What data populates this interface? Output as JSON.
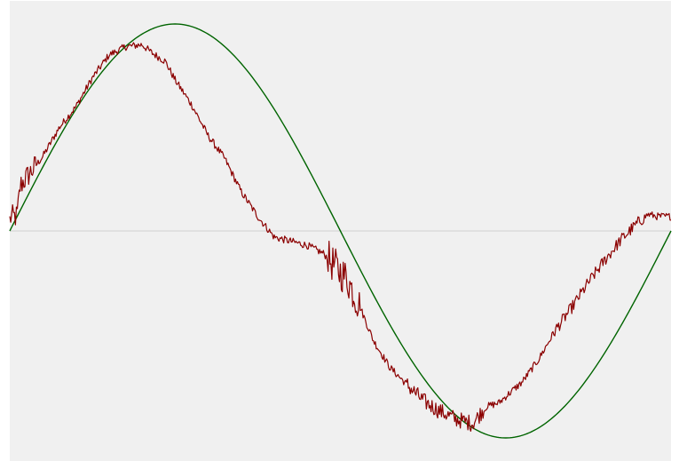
{
  "colors": {
    "background": "#ffffff",
    "plot_area": "#f0f0f0",
    "zero_line": "#d0d0d0",
    "reference_series": "#006400",
    "measured_series": "#8b0000"
  },
  "chart_data": {
    "type": "line",
    "title": "",
    "xlabel": "",
    "ylabel": "",
    "xlim": [
      0,
      1
    ],
    "ylim": [
      -1.12,
      1.12
    ],
    "grid": false,
    "legend": "none",
    "zero_line": true,
    "series": [
      {
        "kind": "smooth",
        "color": "#006400",
        "x": [
          0.0,
          0.05,
          0.1,
          0.15,
          0.2,
          0.25,
          0.3,
          0.35,
          0.4,
          0.45,
          0.5,
          0.55,
          0.6,
          0.65,
          0.7,
          0.75,
          0.8,
          0.85,
          0.9,
          0.95,
          1.0
        ],
        "y": [
          0.0,
          0.309,
          0.588,
          0.809,
          0.951,
          1.0,
          0.951,
          0.809,
          0.588,
          0.309,
          0.0,
          -0.309,
          -0.588,
          -0.809,
          -0.951,
          -1.0,
          -0.951,
          -0.809,
          -0.588,
          -0.309,
          0.0
        ]
      },
      {
        "kind": "noisy",
        "color": "#8b0000",
        "x": [
          0.0,
          0.011,
          0.016,
          0.05,
          0.075,
          0.1,
          0.125,
          0.15,
          0.175,
          0.2,
          0.215,
          0.235,
          0.25,
          0.275,
          0.3,
          0.325,
          0.35,
          0.375,
          0.4,
          0.425,
          0.45,
          0.475,
          0.5,
          0.51,
          0.52,
          0.53,
          0.55,
          0.575,
          0.6,
          0.625,
          0.65,
          0.675,
          0.7,
          0.72,
          0.74,
          0.75,
          0.775,
          0.8,
          0.825,
          0.85,
          0.875,
          0.9,
          0.925,
          0.95,
          0.965,
          0.98,
          1.0
        ],
        "y": [
          0.065,
          0.07,
          0.22,
          0.36,
          0.5,
          0.6,
          0.74,
          0.85,
          0.89,
          0.9,
          0.86,
          0.82,
          0.73,
          0.61,
          0.46,
          0.35,
          0.19,
          0.07,
          -0.03,
          -0.05,
          -0.07,
          -0.11,
          -0.2,
          -0.23,
          -0.3,
          -0.37,
          -0.53,
          -0.66,
          -0.74,
          -0.82,
          -0.87,
          -0.91,
          -0.93,
          -0.85,
          -0.83,
          -0.8,
          -0.73,
          -0.62,
          -0.48,
          -0.37,
          -0.25,
          -0.14,
          -0.04,
          0.04,
          0.08,
          0.07,
          0.07
        ]
      }
    ]
  }
}
